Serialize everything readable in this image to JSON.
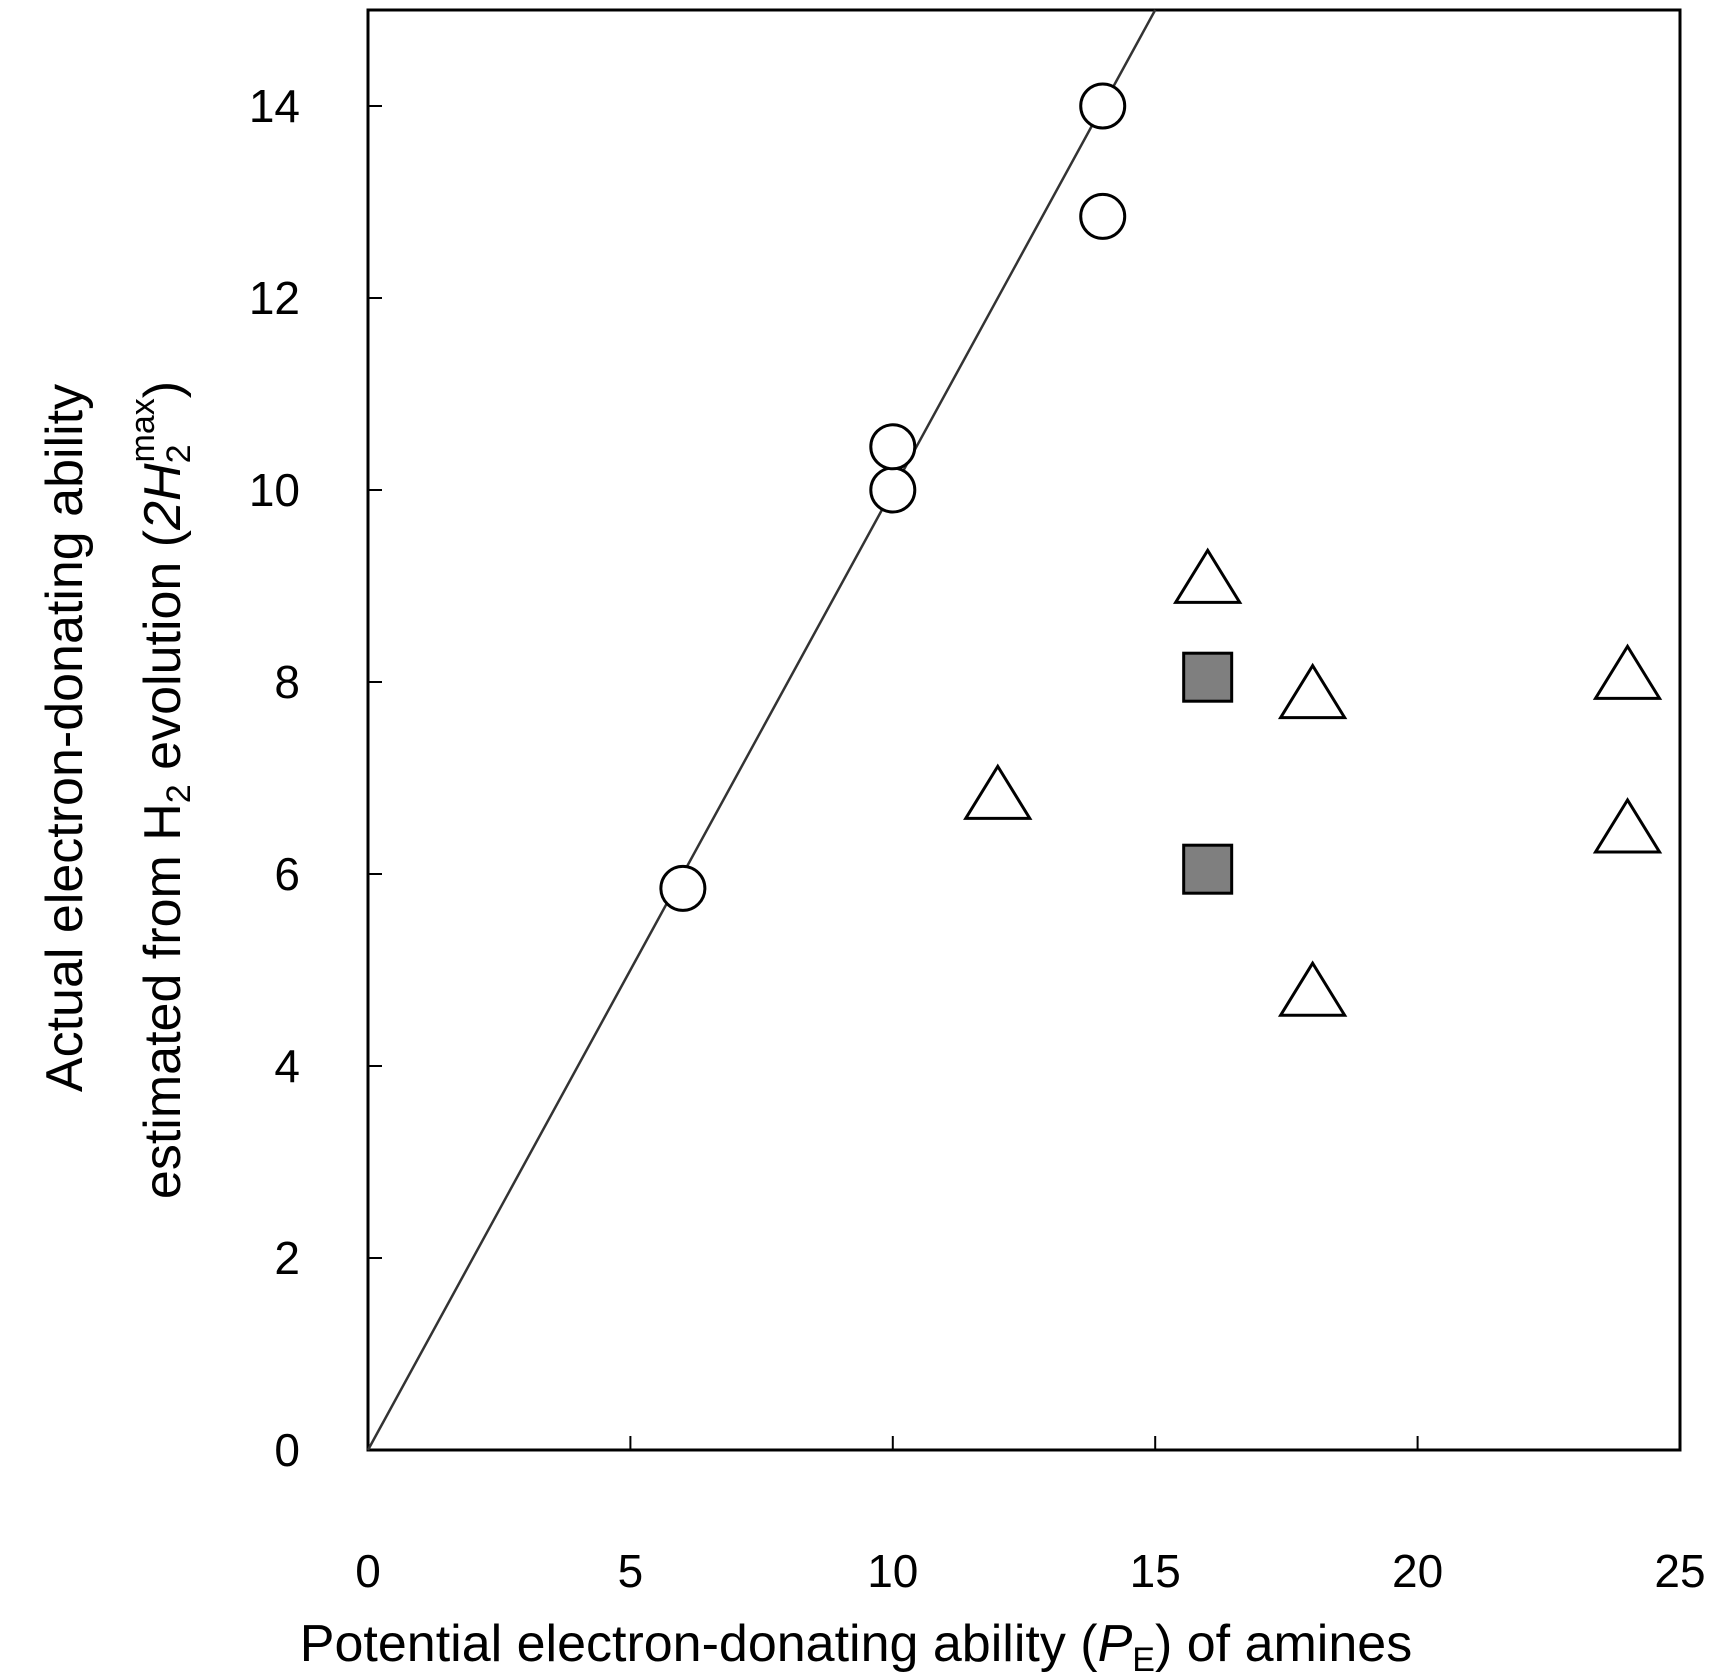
{
  "chart_data": {
    "type": "scatter",
    "xlabel": {
      "pre": "Potential electron-donating ability (",
      "var": "P",
      "sub": "E",
      "post": ") of amines"
    },
    "ylabel": {
      "line1": "Actual electron-donating ability",
      "line2_pre": "estimated from H",
      "line2_sub": "2",
      "line2_mid": " evolution (",
      "line2_var": "2H",
      "line2_var_sub": "2",
      "line2_var_sup": "max",
      "line2_post": ")"
    },
    "xlim": [
      0,
      25
    ],
    "ylim": [
      0,
      15
    ],
    "xticks": [
      0,
      5,
      10,
      15,
      20,
      25
    ],
    "yticks": [
      0,
      2,
      4,
      6,
      8,
      10,
      12,
      14
    ],
    "xtick_labels": [
      "0",
      "5",
      "10",
      "15",
      "20",
      "25"
    ],
    "ytick_labels": [
      "0",
      "2",
      "4",
      "6",
      "8",
      "10",
      "12",
      "14"
    ],
    "fit_line": {
      "slope": 1.0,
      "intercept": 0
    },
    "series": [
      {
        "name": "circles",
        "marker": "circle",
        "fill": "#ffffff",
        "points": [
          {
            "x": 6,
            "y": 5.85
          },
          {
            "x": 10,
            "y": 10.0
          },
          {
            "x": 10,
            "y": 10.45
          },
          {
            "x": 14,
            "y": 12.85
          },
          {
            "x": 14,
            "y": 14.0
          }
        ]
      },
      {
        "name": "triangles",
        "marker": "triangle",
        "fill": "#ffffff",
        "points": [
          {
            "x": 12,
            "y": 6.85
          },
          {
            "x": 16,
            "y": 9.1
          },
          {
            "x": 18,
            "y": 7.9
          },
          {
            "x": 18,
            "y": 4.8
          },
          {
            "x": 24,
            "y": 8.1
          },
          {
            "x": 24,
            "y": 6.5
          }
        ]
      },
      {
        "name": "squares",
        "marker": "square",
        "fill": "#7f7f7f",
        "points": [
          {
            "x": 16,
            "y": 8.05
          },
          {
            "x": 16,
            "y": 6.05
          }
        ]
      }
    ],
    "colors": {
      "axis": "#000000",
      "line": "#333333",
      "marker_stroke": "#000000"
    }
  }
}
